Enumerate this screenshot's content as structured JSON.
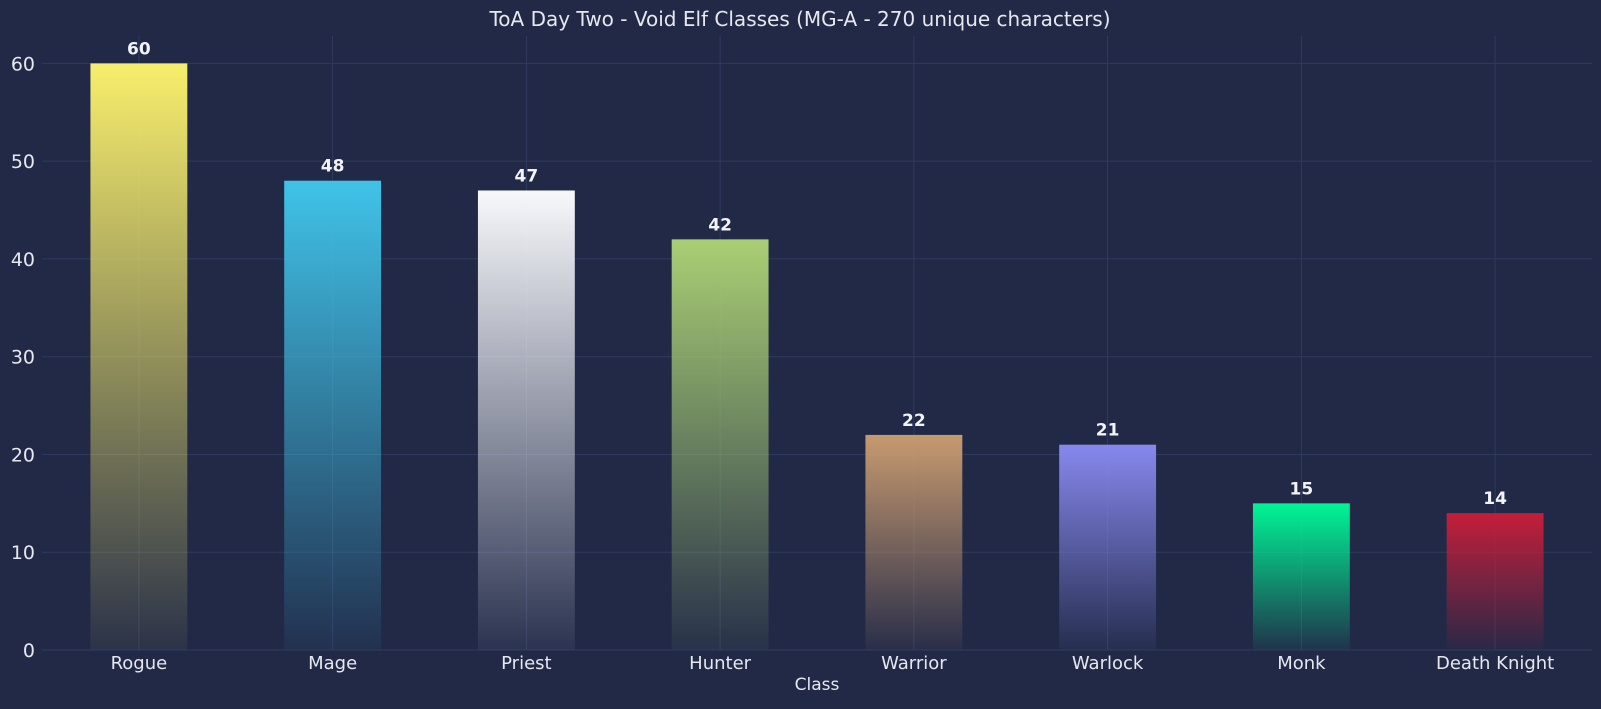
{
  "chart_data": {
    "type": "bar",
    "title": "ToA Day Two - Void Elf Classes (MG-A - 270 unique characters)",
    "xlabel": "Class",
    "ylabel": "",
    "categories": [
      "Rogue",
      "Mage",
      "Priest",
      "Hunter",
      "Warrior",
      "Warlock",
      "Monk",
      "Death Knight"
    ],
    "values": [
      60,
      48,
      47,
      42,
      22,
      21,
      15,
      14
    ],
    "colors": [
      "#f8ee6c",
      "#40c3e8",
      "#f7f8fb",
      "#a9cf74",
      "#c79a6f",
      "#8788ee",
      "#00f596",
      "#c41e3a"
    ],
    "ylim": [
      0,
      62.8
    ],
    "yticks": [
      0,
      10,
      20,
      30,
      40,
      50,
      60
    ],
    "grid": true,
    "data_labels": true,
    "background": "#212947"
  }
}
